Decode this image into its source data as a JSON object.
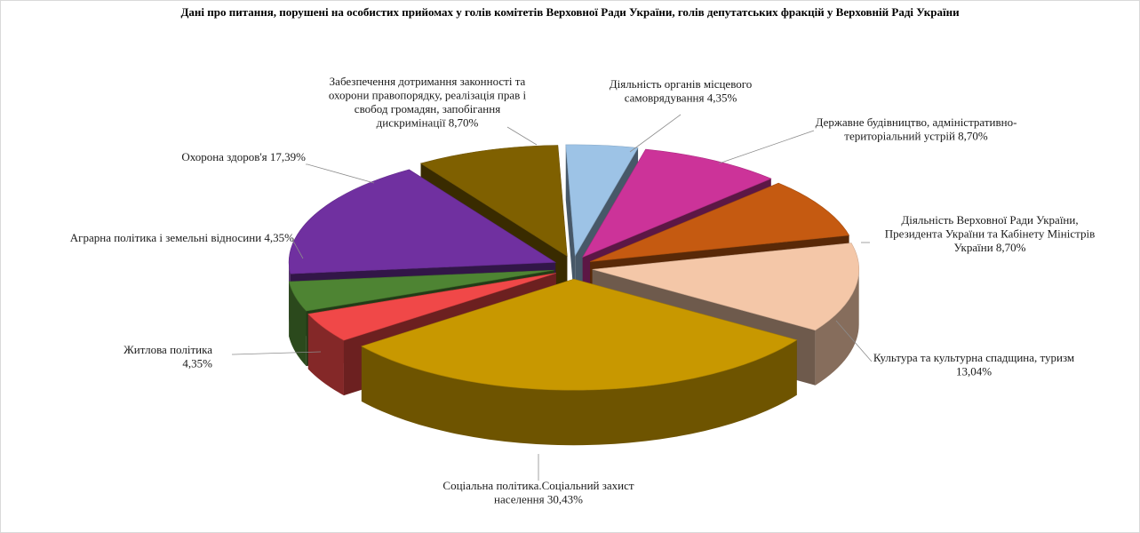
{
  "chart_data": {
    "type": "pie",
    "title": "Дані про питання, порушені  на особистих прийомах у голів комітетів Верховної Ради України, голів депутатських фракцій у Верховній Раді України",
    "slices": [
      {
        "label_lines": [
          "Діяльність  органів  місцевого",
          "самоврядування 4,35%"
        ],
        "value": 4.35,
        "color": "#9DC3E6"
      },
      {
        "label_lines": [
          "Державне будівництво, адміністративно-",
          "територіальний устрій  8,70%"
        ],
        "value": 8.7,
        "color": "#CC3399"
      },
      {
        "label_lines": [
          "Діяльність  Верховної Ради України,",
          "Президента України та Кабінету Міністрів",
          "України  8,70%"
        ],
        "value": 8.7,
        "color": "#C55A11"
      },
      {
        "label_lines": [
          "Культура та культурна  спадщина, туризм",
          "13,04%"
        ],
        "value": 13.04,
        "color": "#F4C7A8"
      },
      {
        "label_lines": [
          "Соціальна політика.Соціальний захист",
          "населення 30,43%"
        ],
        "value": 30.43,
        "color": "#C89800"
      },
      {
        "label_lines": [
          "Житлова політика",
          "4,35%"
        ],
        "value": 4.35,
        "color": "#F04848"
      },
      {
        "label_lines": [
          "Аграрна політика і земельні  відносини 4,35%"
        ],
        "value": 4.35,
        "color": "#4E8433"
      },
      {
        "label_lines": [
          "Охорона здоров'я 17,39%"
        ],
        "value": 17.39,
        "color": "#7030A0"
      },
      {
        "label_lines": [
          "Забезпечення дотримання законності та",
          "охорони правопорядку, реалізація  прав і",
          "свобод громадян, запобігання",
          "дискримінації  8,70%"
        ],
        "value": 8.7,
        "color": "#7F6000"
      }
    ]
  }
}
